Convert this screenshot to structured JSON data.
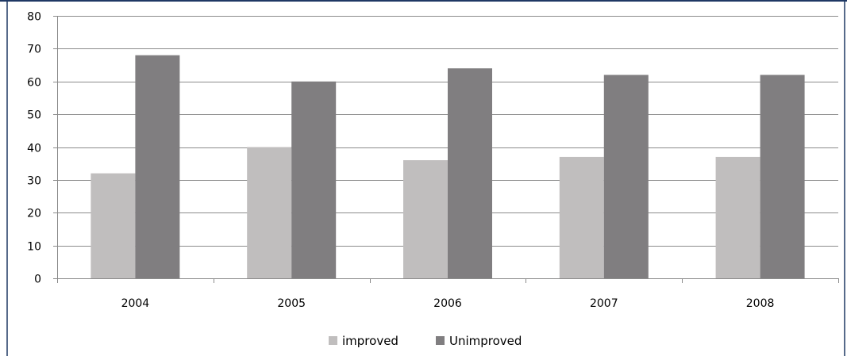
{
  "chart_data": {
    "type": "bar",
    "categories": [
      "2004",
      "2005",
      "2006",
      "2007",
      "2008"
    ],
    "series": [
      {
        "name": "improved",
        "values": [
          32,
          40,
          36,
          37,
          37
        ],
        "color": "#c0bebe"
      },
      {
        "name": "Unimproved",
        "values": [
          68,
          60,
          64,
          62,
          62
        ],
        "color": "#807e80"
      }
    ],
    "ylim": [
      0,
      80
    ],
    "yticks": [
      0,
      10,
      20,
      30,
      40,
      50,
      60,
      70,
      80
    ],
    "grid": true,
    "legend": "bottom",
    "title": "",
    "xlabel": "",
    "ylabel": ""
  },
  "colors": {
    "frame": "#1f3864",
    "grid": "#8c8c8c",
    "axis": "#8c8c8c"
  }
}
